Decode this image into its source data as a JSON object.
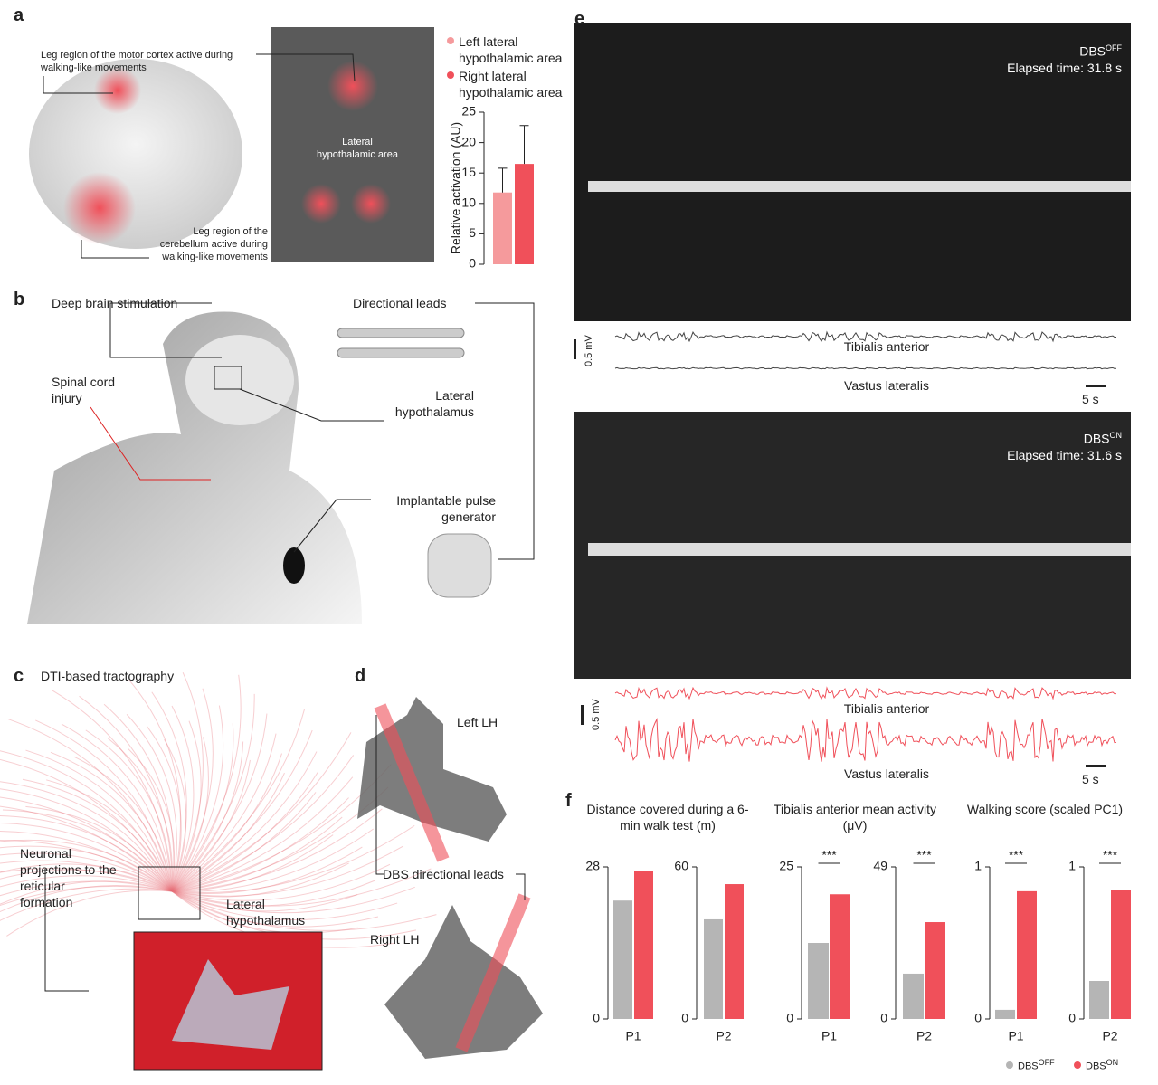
{
  "panels": {
    "a": {
      "label": "a",
      "motor_note": "Leg region of the motor cortex active during walking-like movements",
      "cerebellum_note": "Leg region of the cerebellum active during walking-like movements",
      "area_note": "Lateral hypothalamic area"
    },
    "b": {
      "label": "b",
      "dbs": "Deep brain stimulation",
      "leads": "Directional leads",
      "injury": "Spinal cord injury",
      "hypothalamus": "Lateral hypothalamus",
      "generator": "Implantable pulse generator"
    },
    "c": {
      "label": "c",
      "title": "DTI-based tractography",
      "projections": "Neuronal projections to the reticular formation",
      "hypothalamus": "Lateral hypothalamus"
    },
    "d": {
      "label": "d",
      "left": "Left LH",
      "leads": "DBS directional leads",
      "right": "Right LH"
    },
    "e": {
      "label": "e",
      "off": {
        "state": {
          "text": "DBS",
          "sup": "OFF"
        },
        "elapsed": "Elapsed time: 31.8 s",
        "amp": "0.5 mV",
        "muscle1": "Tibialis anterior",
        "muscle2": "Vastus lateralis",
        "time": "5 s"
      },
      "on": {
        "state": {
          "text": "DBS",
          "sup": "ON"
        },
        "elapsed": "Elapsed time: 31.6 s",
        "amp": "0.5 mV",
        "muscle1": "Tibialis anterior",
        "muscle2": "Vastus lateralis",
        "time": "5 s"
      }
    },
    "f": {
      "label": "f",
      "titles": [
        "Distance  covered during a 6-min walk test (m)",
        "Tibialis anterior mean activity (μV)",
        "Walking score (scaled PC1)"
      ],
      "legend": [
        {
          "text": "DBS",
          "sup": "OFF",
          "color": "#b5b5b5"
        },
        {
          "text": "DBS",
          "sup": "ON",
          "color": "#f0505a"
        }
      ]
    }
  },
  "chart_data": [
    {
      "type": "bar",
      "ylabel": "Relative activation (AU)",
      "categories": [
        null
      ],
      "ylim": [
        0,
        25
      ],
      "yticks": [
        0,
        5,
        10,
        15,
        20,
        25
      ],
      "series": [
        {
          "name": "Left lateral hypothalamic area",
          "color": "#f59a9c",
          "values": [
            11.8
          ],
          "errors": [
            4
          ]
        },
        {
          "name": "Right lateral hypothalamic area",
          "color": "#f0505a",
          "values": [
            16.5
          ],
          "errors": [
            6.3
          ]
        }
      ]
    },
    {
      "type": "bar",
      "categories": [
        "P1"
      ],
      "ylim": [
        0,
        28
      ],
      "yticks": [
        0,
        28
      ],
      "series": [
        {
          "color": "#b5b5b5",
          "values": [
            21.8
          ]
        },
        {
          "color": "#f0505a",
          "values": [
            27.3
          ]
        }
      ]
    },
    {
      "type": "bar",
      "categories": [
        "P2"
      ],
      "ylim": [
        0,
        60
      ],
      "yticks": [
        0,
        60
      ],
      "series": [
        {
          "color": "#b5b5b5",
          "values": [
            39.3
          ]
        },
        {
          "color": "#f0505a",
          "values": [
            53.2
          ]
        }
      ]
    },
    {
      "type": "bar",
      "categories": [
        "P1"
      ],
      "ylim": [
        0,
        25
      ],
      "yticks": [
        0,
        25
      ],
      "annotation": "***",
      "series": [
        {
          "color": "#b5b5b5",
          "values": [
            12.5
          ]
        },
        {
          "color": "#f0505a",
          "values": [
            20.5
          ]
        }
      ]
    },
    {
      "type": "bar",
      "categories": [
        "P2"
      ],
      "ylim": [
        0,
        49
      ],
      "yticks": [
        0,
        49
      ],
      "annotation": "***",
      "series": [
        {
          "color": "#b5b5b5",
          "values": [
            14.6
          ]
        },
        {
          "color": "#f0505a",
          "values": [
            31.2
          ]
        }
      ]
    },
    {
      "type": "bar",
      "categories": [
        "P1"
      ],
      "ylim": [
        0,
        1
      ],
      "yticks": [
        0,
        1
      ],
      "annotation": "***",
      "series": [
        {
          "color": "#b5b5b5",
          "values": [
            0.06
          ]
        },
        {
          "color": "#f0505a",
          "values": [
            0.84
          ]
        }
      ]
    },
    {
      "type": "bar",
      "categories": [
        "P2"
      ],
      "ylim": [
        0,
        1
      ],
      "yticks": [
        0,
        1
      ],
      "annotation": "***",
      "series": [
        {
          "color": "#b5b5b5",
          "values": [
            0.25
          ]
        },
        {
          "color": "#f0505a",
          "values": [
            0.85
          ]
        }
      ]
    }
  ]
}
